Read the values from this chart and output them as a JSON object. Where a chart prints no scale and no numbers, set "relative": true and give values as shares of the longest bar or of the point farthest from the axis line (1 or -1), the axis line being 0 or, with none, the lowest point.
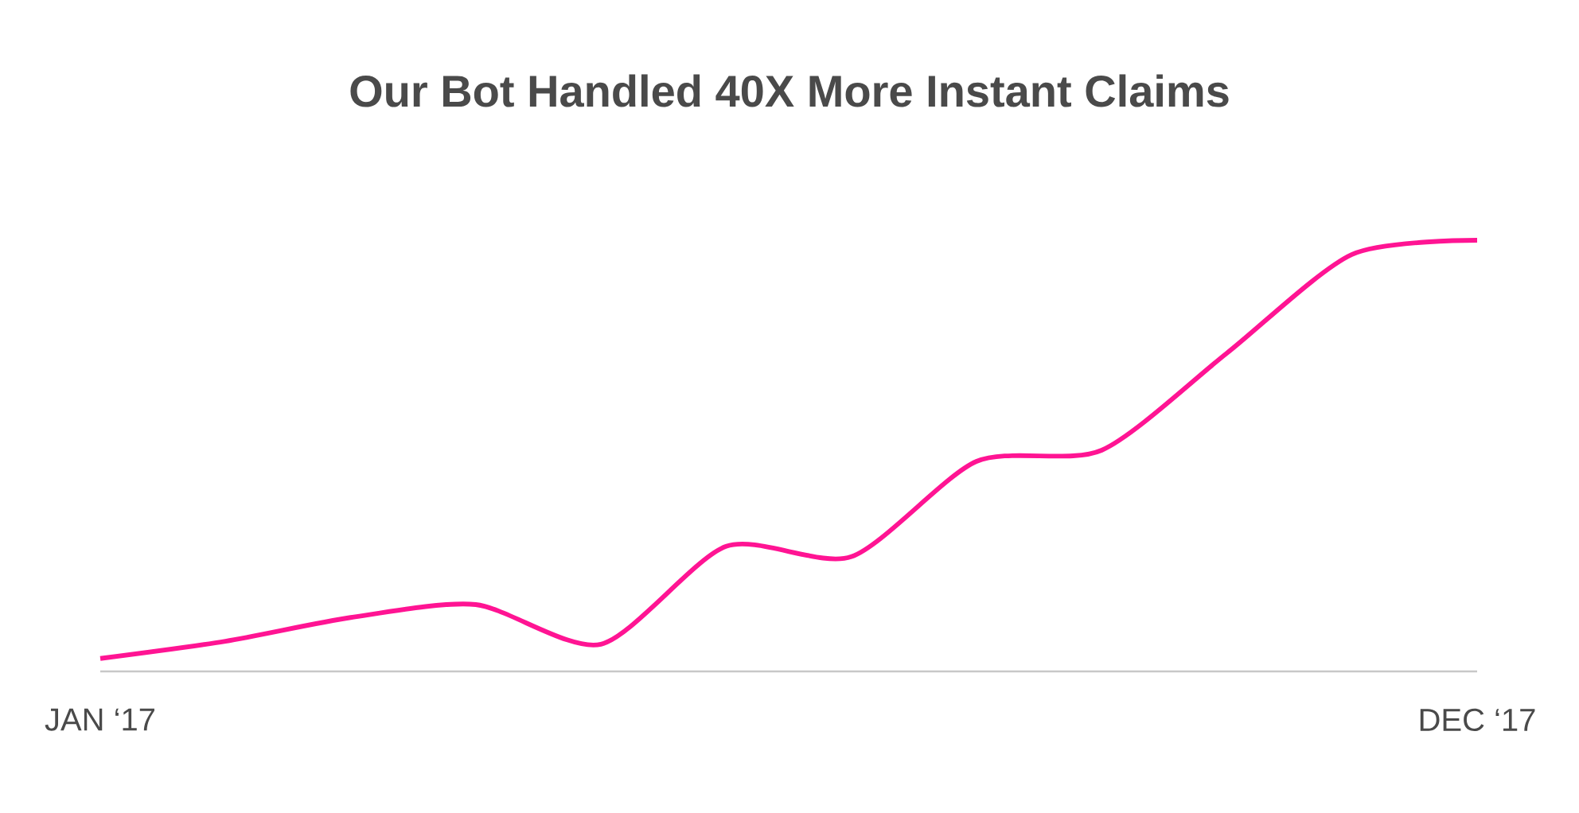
{
  "chart_data": {
    "type": "line",
    "title": "Our Bot Handled 40X More Instant Claims",
    "relative": true,
    "categories": [
      "JAN ‘17",
      null,
      null,
      null,
      null,
      null,
      null,
      null,
      null,
      null,
      null,
      "DEC ‘17"
    ],
    "series": [
      {
        "color": "#ff1493",
        "values": [
          0.03,
          0.07,
          0.125,
          0.155,
          0.063,
          0.29,
          0.266,
          0.487,
          0.513,
          0.738,
          0.967,
          1
        ]
      }
    ]
  }
}
